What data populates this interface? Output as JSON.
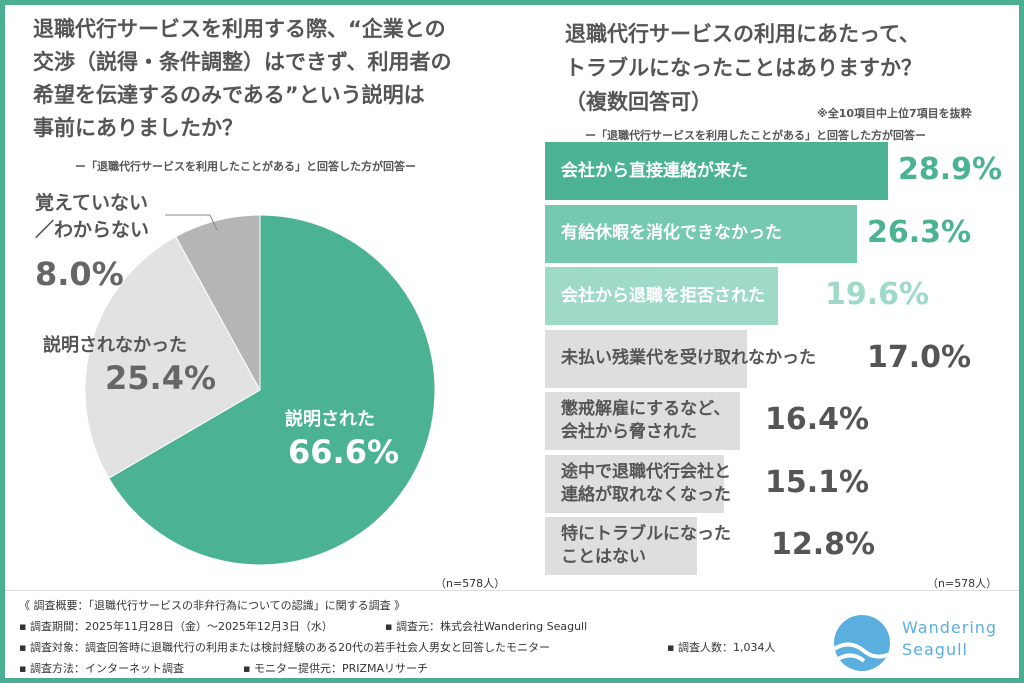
{
  "left": {
    "question": [
      "退職代行サービスを利用する際、“企業との",
      "交渉（説得・条件調整）はできず、利用者の",
      "希望を伝達するのみである”という説明は",
      "事前にありましたか？"
    ],
    "note": "ー「退職代行サービスを利用したことがある」と回答した方が回答ー",
    "n": "（n=578人）"
  },
  "right": {
    "question": [
      "退職代行サービスの利用にあたって、",
      "トラブルになったことはありますか？",
      "（複数回答可）"
    ],
    "extract_note": "※全10項目中上位7項目を抜粋",
    "note": "ー「退職代行サービスを利用したことがある」と回答した方が回答ー",
    "n": "（n=578人）"
  },
  "chart_data": [
    {
      "type": "pie",
      "slices": [
        {
          "label": "説明された",
          "value": 66.6,
          "display": "66.6%",
          "color": "#4bb393"
        },
        {
          "label": "説明されなかった",
          "value": 25.4,
          "display": "25.4%",
          "color": "#e2e2e2"
        },
        {
          "label": "覚えていない／わからない",
          "label_lines": [
            "覚えていない",
            "／わからない"
          ],
          "value": 8.0,
          "display": "8.0%",
          "color": "#b5b5b5"
        }
      ]
    },
    {
      "type": "bar",
      "orientation": "horizontal",
      "categories": [
        [
          "会社から直接連絡が来た"
        ],
        [
          "有給休暇を消化できなかった"
        ],
        [
          "会社から退職を拒否された"
        ],
        [
          "未払い残業代を受け取れなかった"
        ],
        [
          "懲戒解雇にするなど、",
          "会社から脅された"
        ],
        [
          "途中で退職代行会社と",
          "連絡が取れなくなった"
        ],
        [
          "特にトラブルになった",
          "ことはない"
        ]
      ],
      "values": [
        28.9,
        26.3,
        19.6,
        17.0,
        16.4,
        15.1,
        12.8
      ],
      "displays": [
        "28.9%",
        "26.3%",
        "19.6%",
        "17.0%",
        "16.4%",
        "15.1%",
        "12.8%"
      ],
      "colors": [
        "#4bb393",
        "#75c9b0",
        "#9fdac8",
        "#dedede",
        "#dedede",
        "#dedede",
        "#dedede"
      ],
      "value_colors": [
        "#4bb393",
        "#4bb393",
        "#9fdac8",
        "#555555",
        "#555555",
        "#555555",
        "#555555"
      ]
    }
  ],
  "footer": {
    "title": "《 調査概要：「退職代行サービスの非弁行為についての認識」に関する調査 》",
    "period": "▪ 調査期間：2025年11月28日（金）～2025年12月3日（水）",
    "org": "▪ 調査元：株式会社Wandering Seagull",
    "target": "▪ 調査対象：調査回答時に退職代行の利用または検討経験のある20代の若手社会人男女と回答したモニター",
    "count": "▪ 調査人数：1,034人",
    "method": "▪ 調査方法：インターネット調査",
    "provider": "▪ モニター提供元：PRIZMAリサーチ"
  },
  "logo": {
    "line1": "Wandering",
    "line2": "Seagull",
    "color": "#5aafdf"
  }
}
